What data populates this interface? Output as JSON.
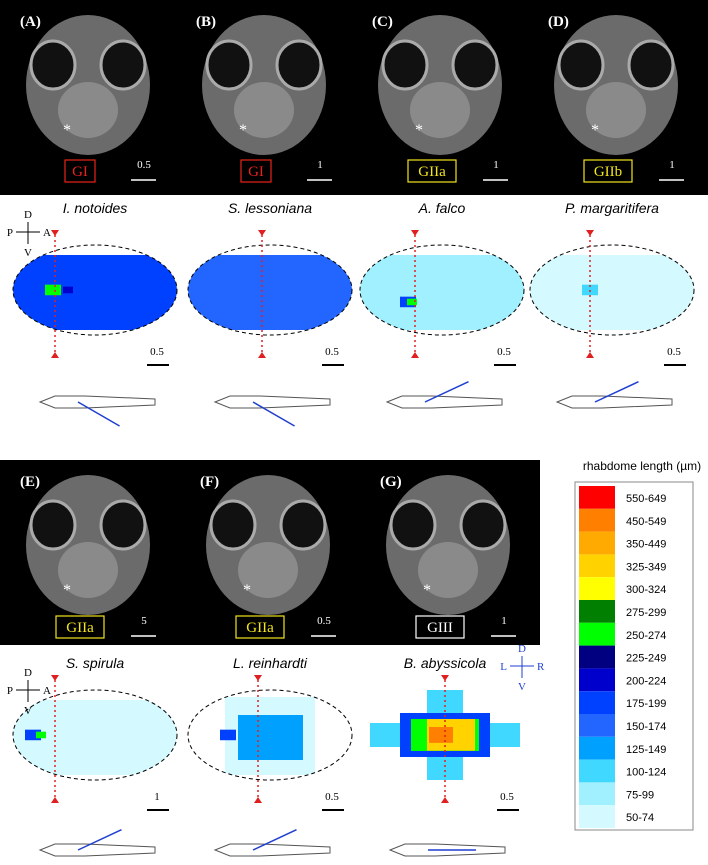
{
  "panels": [
    {
      "label": "(A)",
      "group": "GI",
      "tag_color": "#e8231b",
      "scale": "0.5",
      "species": "I. notoides",
      "heatmap_scale": "0.5"
    },
    {
      "label": "(B)",
      "group": "GI",
      "tag_color": "#e8231b",
      "scale": "1",
      "species": "S. lessoniana",
      "heatmap_scale": "0.5"
    },
    {
      "label": "(C)",
      "group": "GIIa",
      "tag_color": "#f2e51c",
      "scale": "1",
      "species": "A. falco",
      "heatmap_scale": "0.5"
    },
    {
      "label": "(D)",
      "group": "GIIb",
      "tag_color": "#f2e51c",
      "scale": "1",
      "species": "P. margaritifera",
      "heatmap_scale": "0.5"
    },
    {
      "label": "(E)",
      "group": "GIIa",
      "tag_color": "#f2e51c",
      "scale": "5",
      "species": "S. spirula",
      "heatmap_scale": "1"
    },
    {
      "label": "(F)",
      "group": "GIIa",
      "tag_color": "#f2e51c",
      "scale": "0.5",
      "species": "L. reinhardti",
      "heatmap_scale": "0.5"
    },
    {
      "label": "(G)",
      "group": "GIII",
      "tag_color": "#ffffff",
      "scale": "1",
      "species": "B. abyssicola",
      "heatmap_scale": "0.5"
    }
  ],
  "orientation_side": {
    "d": "D",
    "v": "V",
    "p": "P",
    "a": "A"
  },
  "orientation_front": {
    "d": "D",
    "v": "V",
    "l": "L",
    "r": "R"
  },
  "legend": {
    "title": "rhabdome length (µm)",
    "items": [
      {
        "label": "550-649",
        "color": "#ff0000"
      },
      {
        "label": "450-549",
        "color": "#ff7f00"
      },
      {
        "label": "350-449",
        "color": "#ffaa00"
      },
      {
        "label": "325-349",
        "color": "#ffd200"
      },
      {
        "label": "300-324",
        "color": "#ffff00"
      },
      {
        "label": "275-299",
        "color": "#007f00"
      },
      {
        "label": "250-274",
        "color": "#00ff00"
      },
      {
        "label": "225-249",
        "color": "#000080"
      },
      {
        "label": "200-224",
        "color": "#0000cd"
      },
      {
        "label": "175-199",
        "color": "#0040ff"
      },
      {
        "label": "150-174",
        "color": "#2266ff"
      },
      {
        "label": "125-149",
        "color": "#00a0ff"
      },
      {
        "label": "100-124",
        "color": "#40d8ff"
      },
      {
        "label": "75-99",
        "color": "#a0f0ff"
      },
      {
        "label": "50-74",
        "color": "#d4faff"
      }
    ]
  }
}
